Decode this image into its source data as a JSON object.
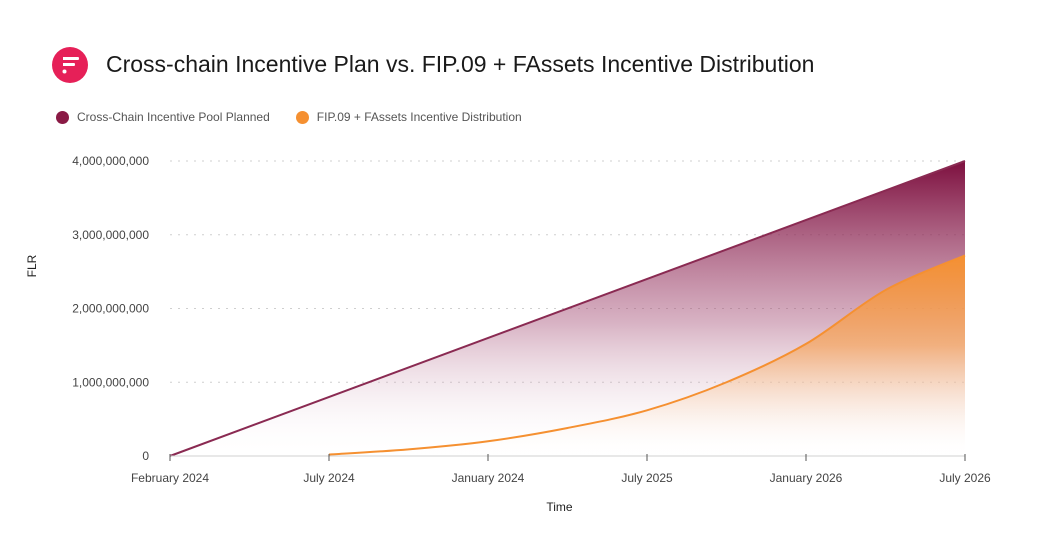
{
  "header": {
    "title": "Cross-chain Incentive Plan vs. FIP.09 + FAssets Incentive Distribution",
    "logo_icon": "flare-logo-icon"
  },
  "colors": {
    "pool": "#8a1a45",
    "distribution": "#f59031",
    "logo": "#e62058",
    "grid": "#cfcfcf"
  },
  "chart_data": {
    "type": "area",
    "title": "Cross-chain Incentive Plan vs. FIP.09 + FAssets Incentive Distribution",
    "xlabel": "Time",
    "ylabel": "FLR",
    "categories": [
      "February 2024",
      "July 2024",
      "January 2024",
      "July 2025",
      "January 2026",
      "July 2026"
    ],
    "ylim": [
      0,
      4000000000
    ],
    "yticks": [
      0,
      1000000000,
      2000000000,
      3000000000,
      4000000000
    ],
    "ytick_labels": [
      "0",
      "1,000,000,000",
      "2,000,000,000",
      "3,000,000,000",
      "4,000,000,000"
    ],
    "grid": true,
    "legend_position": "top-left",
    "series": [
      {
        "name": "Cross-Chain Incentive Pool Planned",
        "x": [
          0,
          5
        ],
        "values": [
          0,
          4000000000
        ]
      },
      {
        "name": "FIP.09 + FAssets Incentive Distribution",
        "x": [
          1,
          1.5,
          2,
          2.5,
          3,
          3.5,
          4,
          4.5,
          5
        ],
        "values": [
          20000000,
          90000000,
          200000000,
          380000000,
          620000000,
          1000000000,
          1520000000,
          2250000000,
          2720000000
        ]
      }
    ]
  }
}
